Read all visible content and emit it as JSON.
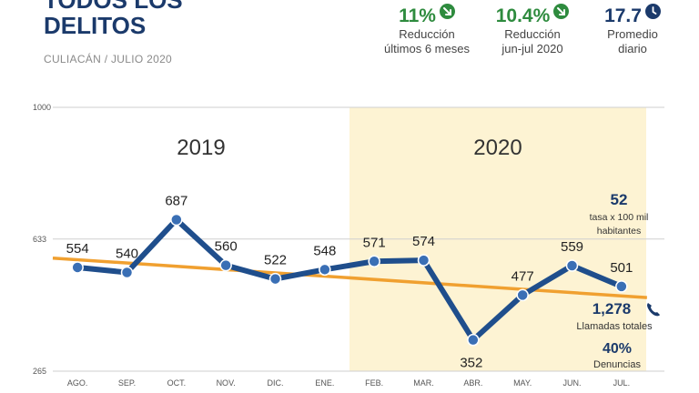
{
  "header": {
    "title_line1": "TODOS LOS",
    "title_line2": "DELITOS",
    "subtitle": "CULIACÁN / JULIO 2020"
  },
  "stats": [
    {
      "value": "11%",
      "label1": "Reducción",
      "label2": "últimos 6 meses",
      "color": "#2e8b3e",
      "icon": "arrow-down-right-icon"
    },
    {
      "value": "10.4%",
      "label1": "Reducción",
      "label2": "jun-jul 2020",
      "color": "#2e8b3e",
      "icon": "arrow-down-right-icon"
    },
    {
      "value": "17.7",
      "label1": "Promedio",
      "label2": "diario",
      "color": "#1b3a6b",
      "icon": "clock-icon"
    }
  ],
  "annotations": {
    "rate_value": "52",
    "rate_label1": "tasa x 100 mil",
    "rate_label2": "habitantes",
    "calls_value": "1,278",
    "calls_label": "Llamadas totales",
    "reports_value": "40%",
    "reports_label": "Denuncias"
  },
  "chart_data": {
    "type": "line",
    "title": "",
    "xlabel": "",
    "ylabel": "",
    "categories": [
      "AGO.",
      "SEP.",
      "OCT.",
      "NOV.",
      "DIC.",
      "ENE.",
      "FEB.",
      "MAR.",
      "ABR.",
      "MAY.",
      "JUN.",
      "JUL."
    ],
    "series": [
      {
        "values": [
          554,
          540,
          687,
          560,
          522,
          548,
          571,
          574,
          352,
          477,
          559,
          501
        ],
        "color": "#1f4e8c"
      }
    ],
    "trend": {
      "start": 580,
      "end": 470,
      "color": "#f0a030"
    },
    "ylim": [
      265,
      1000
    ],
    "yticks": [
      265,
      633,
      1000
    ],
    "period_labels": [
      {
        "label": "2019",
        "from": "AGO.",
        "to": "ENE."
      },
      {
        "label": "2020",
        "from": "FEB.",
        "to": "JUL.",
        "highlight": "#fdf3d3"
      }
    ],
    "grid": true,
    "legend": "none"
  }
}
